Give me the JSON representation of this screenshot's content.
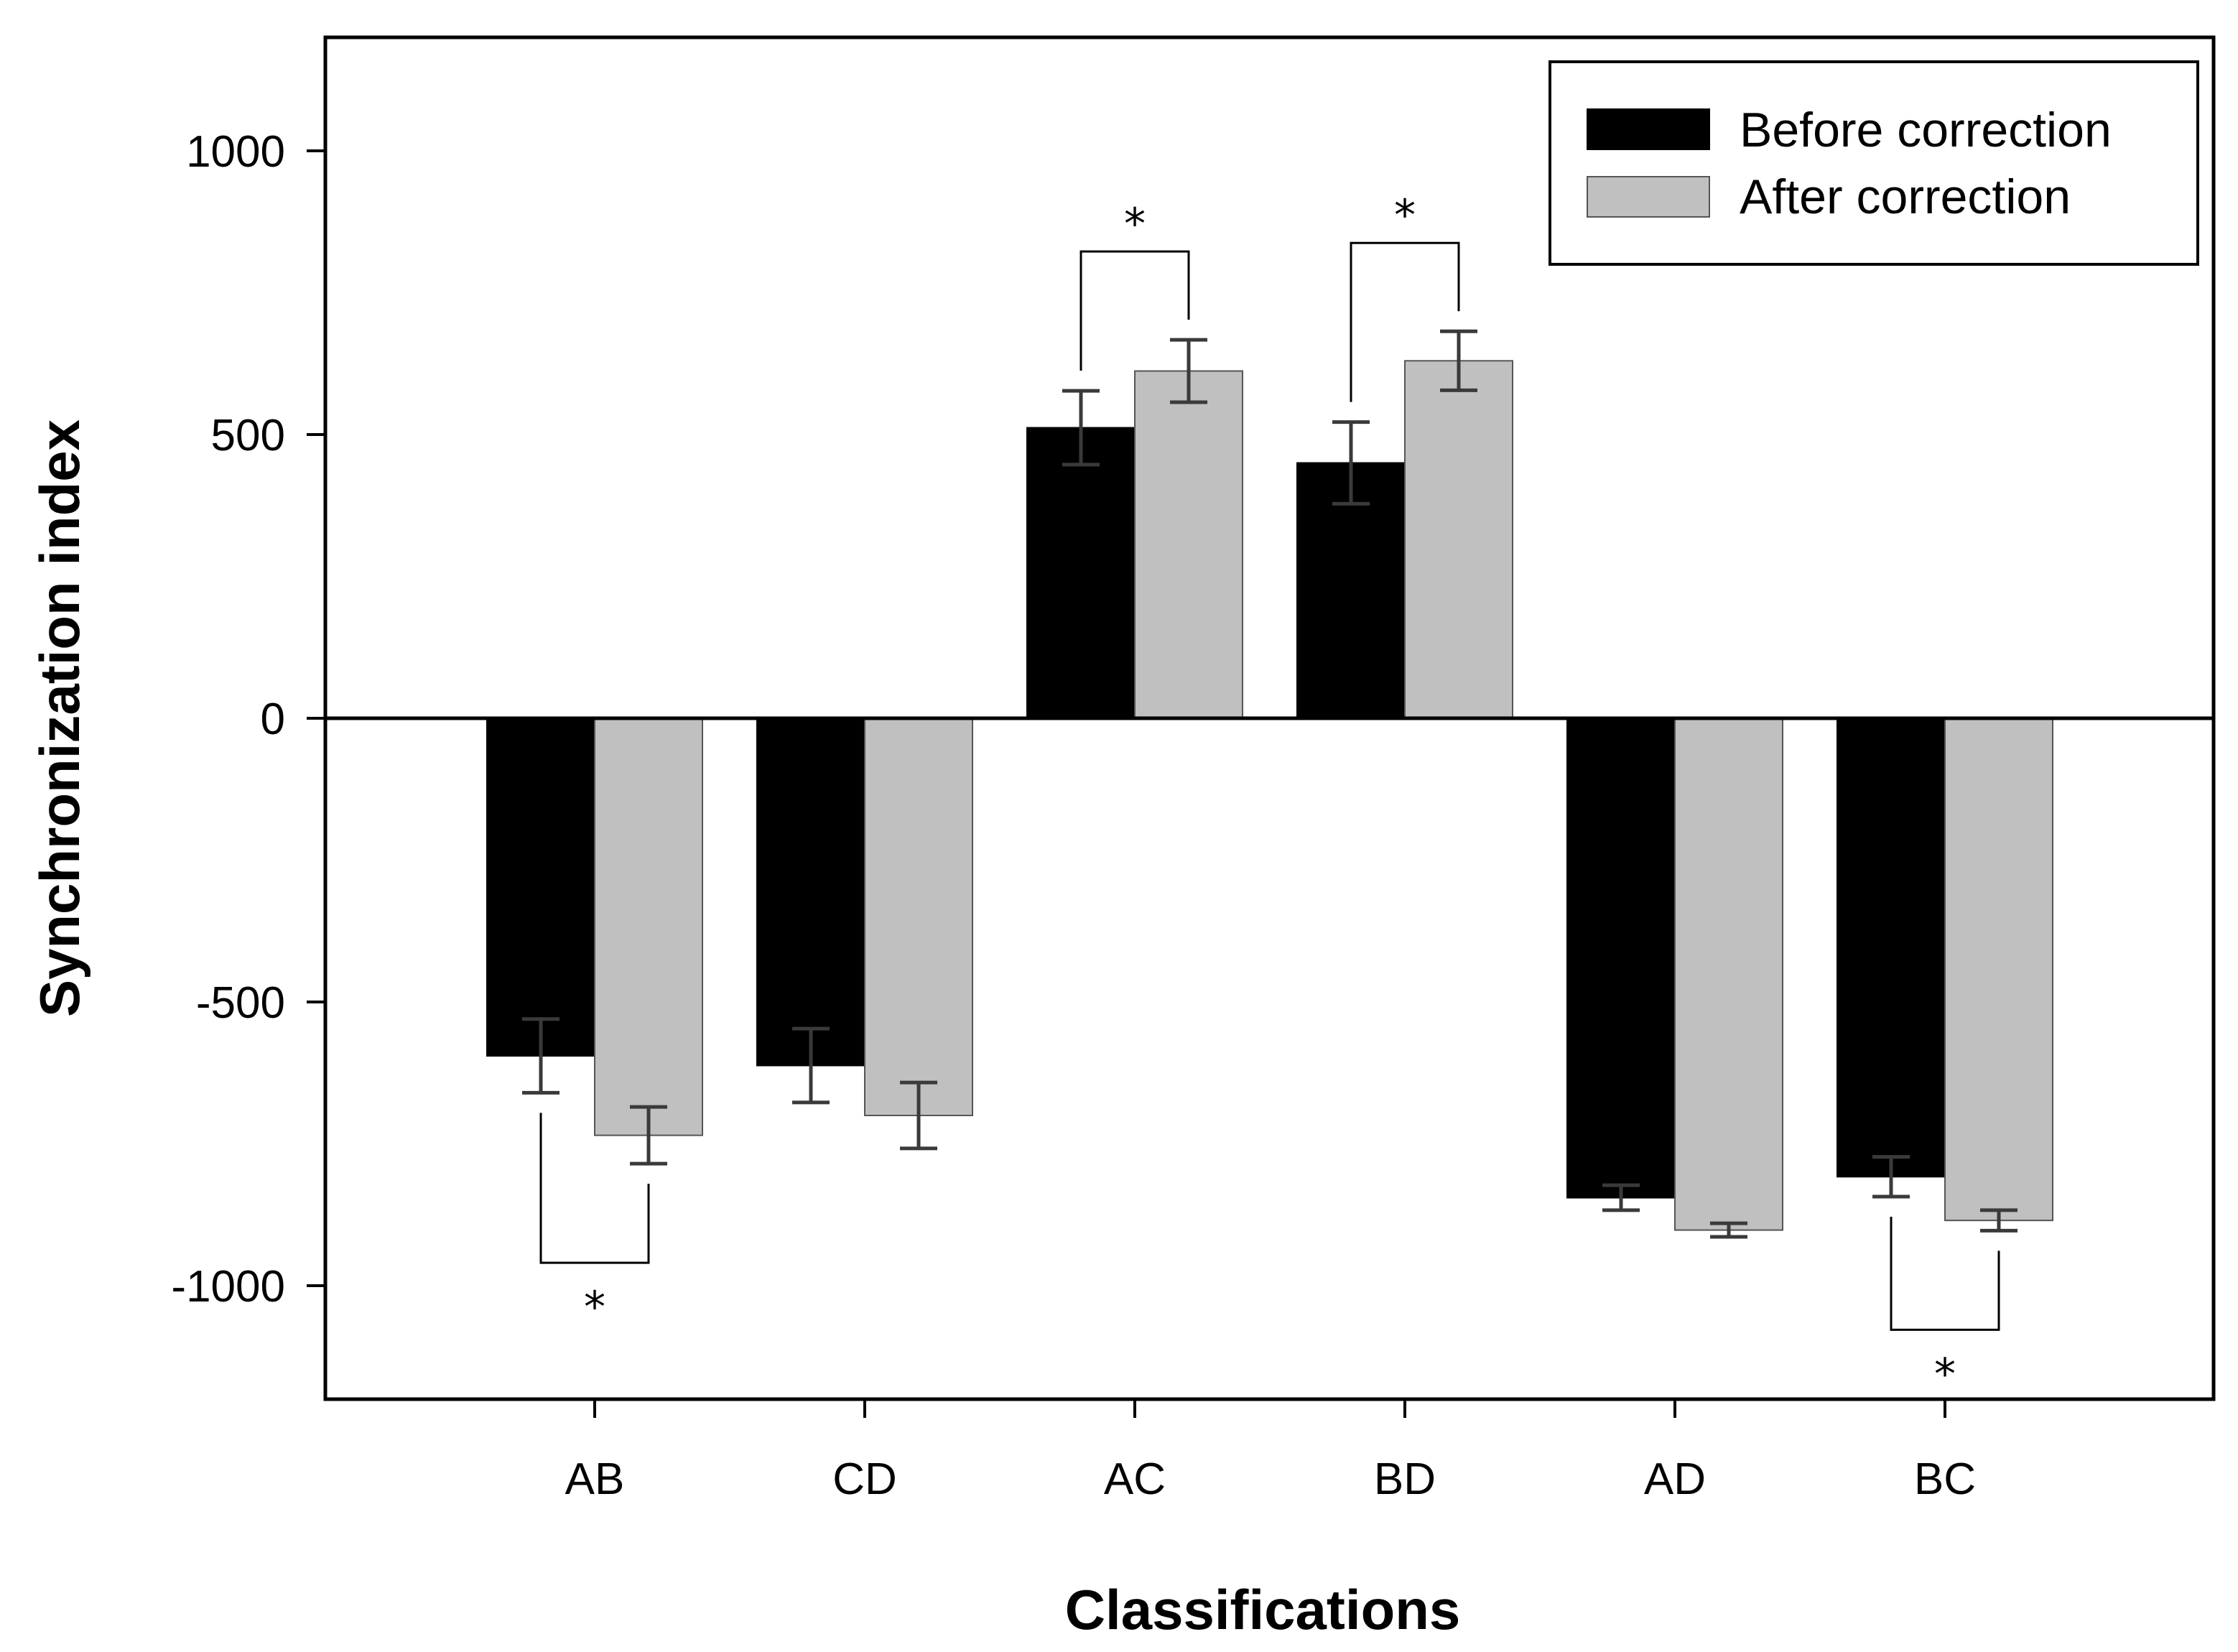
{
  "chart_data": {
    "type": "bar",
    "title": "",
    "xlabel": "Classifications",
    "ylabel": "Synchronization index",
    "ylim": [
      -1200,
      1200
    ],
    "yticks": [
      -1000,
      -500,
      0,
      500,
      1000
    ],
    "ytick_labels": [
      "-1000",
      "-500",
      "0",
      "500",
      "1000"
    ],
    "categories": [
      "AB",
      "CD",
      "AC",
      "BD",
      "AD",
      "BC"
    ],
    "series": [
      {
        "name": "Before correction",
        "color": "#000000",
        "values": [
          -595,
          -612,
          512,
          450,
          -845,
          -808
        ],
        "errors": [
          65,
          65,
          65,
          72,
          22,
          35
        ]
      },
      {
        "name": "After correction",
        "color": "#c0c0c0",
        "values": [
          -735,
          -700,
          612,
          630,
          -902,
          -885
        ],
        "errors": [
          50,
          58,
          55,
          52,
          12,
          18
        ]
      }
    ],
    "legend_position": "top-right",
    "significance": [
      {
        "category": "AB",
        "label": "*",
        "side": "below"
      },
      {
        "category": "AC",
        "label": "*",
        "side": "above"
      },
      {
        "category": "BD",
        "label": "*",
        "side": "above"
      },
      {
        "category": "BC",
        "label": "*",
        "side": "below"
      }
    ]
  }
}
